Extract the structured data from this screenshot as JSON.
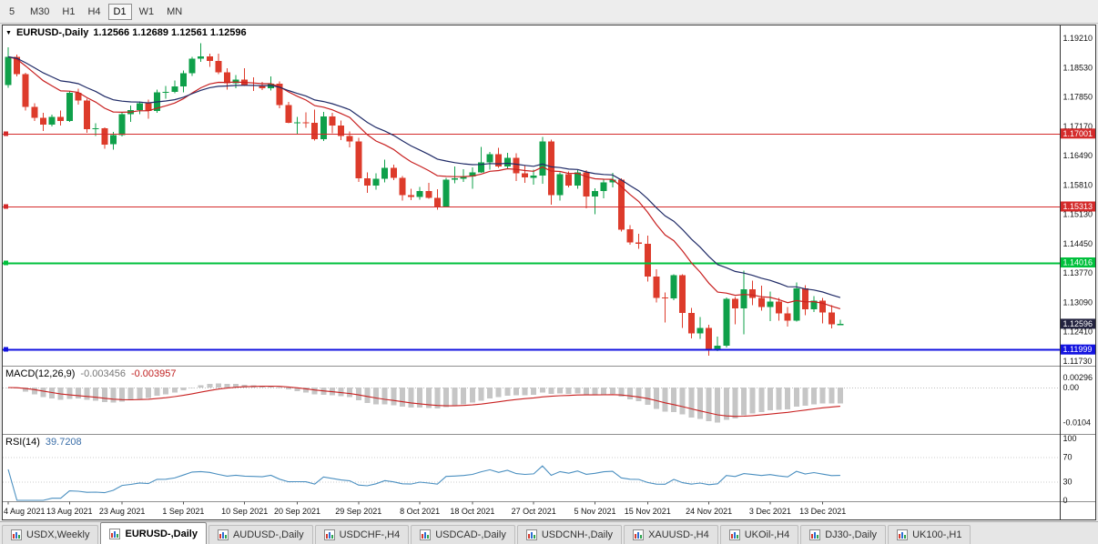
{
  "toolbar": {
    "timeframes": [
      "5",
      "M30",
      "H1",
      "H4",
      "D1",
      "W1",
      "MN"
    ],
    "active": "D1"
  },
  "chart": {
    "dropdown_glyph": "▼",
    "title": "EURUSD-,Daily",
    "ohlc": "1.12566 1.12689 1.12561 1.12596"
  },
  "panes": {
    "macd": {
      "name": "MACD(12,26,9)",
      "value_main": "-0.003456",
      "value_signal": "-0.003957"
    },
    "rsi": {
      "name": "RSI(14)",
      "value": "39.7208"
    }
  },
  "chart_data": {
    "type": "candlestick",
    "symbol": "EURUSD-",
    "timeframe": "Daily",
    "current_bar": {
      "open": 1.12566,
      "high": 1.12689,
      "low": 1.12561,
      "close": 1.12596
    },
    "up_color": "#0fa04a",
    "down_color": "#dd3b2b",
    "y_axis": {
      "ticks": [
        "1.19210",
        "1.18530",
        "1.17850",
        "1.17170",
        "1.16490",
        "1.15810",
        "1.15130",
        "1.14450",
        "1.13770",
        "1.13090",
        "1.12410",
        "1.11730"
      ]
    },
    "x_axis": {
      "tick_labels": [
        {
          "label": "4 Aug 2021",
          "index": 0
        },
        {
          "label": "13 Aug 2021",
          "index": 7
        },
        {
          "label": "23 Aug 2021",
          "index": 13
        },
        {
          "label": "1 Sep 2021",
          "index": 20
        },
        {
          "label": "10 Sep 2021",
          "index": 27
        },
        {
          "label": "20 Sep 2021",
          "index": 33
        },
        {
          "label": "29 Sep 2021",
          "index": 40
        },
        {
          "label": "8 Oct 2021",
          "index": 47
        },
        {
          "label": "18 Oct 2021",
          "index": 53
        },
        {
          "label": "27 Oct 2021",
          "index": 60
        },
        {
          "label": "5 Nov 2021",
          "index": 67
        },
        {
          "label": "15 Nov 2021",
          "index": 73
        },
        {
          "label": "24 Nov 2021",
          "index": 80
        },
        {
          "label": "3 Dec 2021",
          "index": 87
        },
        {
          "label": "13 Dec 2021",
          "index": 93
        }
      ]
    },
    "candles": [
      [
        1.1812,
        1.19,
        1.1806,
        1.1878
      ],
      [
        1.1878,
        1.1883,
        1.1833,
        1.1838
      ],
      [
        1.1838,
        1.1841,
        1.1754,
        1.1762
      ],
      [
        1.1762,
        1.177,
        1.1729,
        1.1737
      ],
      [
        1.1737,
        1.1748,
        1.1706,
        1.1721
      ],
      [
        1.1721,
        1.1744,
        1.1717,
        1.1739
      ],
      [
        1.1739,
        1.1753,
        1.1719,
        1.1729
      ],
      [
        1.1729,
        1.1799,
        1.1727,
        1.1795
      ],
      [
        1.1795,
        1.1804,
        1.1767,
        1.1777
      ],
      [
        1.1777,
        1.1781,
        1.1702,
        1.171
      ],
      [
        1.171,
        1.1724,
        1.1694,
        1.1712
      ],
      [
        1.1712,
        1.1715,
        1.1665,
        1.1675
      ],
      [
        1.1675,
        1.1704,
        1.1663,
        1.1697
      ],
      [
        1.1697,
        1.175,
        1.1693,
        1.1745
      ],
      [
        1.1745,
        1.1765,
        1.1727,
        1.1755
      ],
      [
        1.1755,
        1.1775,
        1.1745,
        1.177
      ],
      [
        1.177,
        1.1779,
        1.1735,
        1.1752
      ],
      [
        1.1752,
        1.1802,
        1.1748,
        1.1796
      ],
      [
        1.1796,
        1.181,
        1.1781,
        1.1797
      ],
      [
        1.1797,
        1.1823,
        1.1793,
        1.1809
      ],
      [
        1.1809,
        1.1846,
        1.1796,
        1.184
      ],
      [
        1.184,
        1.1878,
        1.1834,
        1.1874
      ],
      [
        1.1874,
        1.1909,
        1.1866,
        1.1879
      ],
      [
        1.1879,
        1.1885,
        1.1855,
        1.1868
      ],
      [
        1.1868,
        1.1885,
        1.1838,
        1.1842
      ],
      [
        1.1842,
        1.1851,
        1.1802,
        1.1817
      ],
      [
        1.1817,
        1.1836,
        1.1805,
        1.1825
      ],
      [
        1.1825,
        1.1851,
        1.181,
        1.1813
      ],
      [
        1.1813,
        1.183,
        1.1799,
        1.181
      ],
      [
        1.181,
        1.182,
        1.1801,
        1.1805
      ],
      [
        1.1805,
        1.1832,
        1.18,
        1.1816
      ],
      [
        1.1816,
        1.1821,
        1.1759,
        1.1766
      ],
      [
        1.1766,
        1.1773,
        1.1724,
        1.1725
      ],
      [
        1.1725,
        1.1739,
        1.17,
        1.1726
      ],
      [
        1.1726,
        1.1749,
        1.1713,
        1.1725
      ],
      [
        1.1725,
        1.1756,
        1.1684,
        1.1687
      ],
      [
        1.1687,
        1.175,
        1.1683,
        1.174
      ],
      [
        1.174,
        1.1748,
        1.1701,
        1.1719
      ],
      [
        1.1719,
        1.173,
        1.1685,
        1.1695
      ],
      [
        1.1695,
        1.1705,
        1.1668,
        1.1682
      ],
      [
        1.1682,
        1.169,
        1.1588,
        1.1596
      ],
      [
        1.1596,
        1.161,
        1.1563,
        1.158
      ],
      [
        1.158,
        1.1608,
        1.157,
        1.1595
      ],
      [
        1.1595,
        1.164,
        1.1587,
        1.1621
      ],
      [
        1.1621,
        1.1628,
        1.1592,
        1.1598
      ],
      [
        1.1598,
        1.1602,
        1.1545,
        1.1558
      ],
      [
        1.1558,
        1.1572,
        1.1546,
        1.1553
      ],
      [
        1.1553,
        1.1576,
        1.1547,
        1.1567
      ],
      [
        1.1567,
        1.1586,
        1.1549,
        1.1551
      ],
      [
        1.1551,
        1.1571,
        1.1524,
        1.153
      ],
      [
        1.153,
        1.1598,
        1.1529,
        1.1593
      ],
      [
        1.1593,
        1.1624,
        1.1585,
        1.1596
      ],
      [
        1.1596,
        1.1618,
        1.1588,
        1.1601
      ],
      [
        1.1601,
        1.1622,
        1.1572,
        1.161
      ],
      [
        1.161,
        1.1669,
        1.1609,
        1.1633
      ],
      [
        1.1633,
        1.1658,
        1.1617,
        1.1652
      ],
      [
        1.1652,
        1.1667,
        1.1621,
        1.1624
      ],
      [
        1.1624,
        1.1656,
        1.162,
        1.1644
      ],
      [
        1.1644,
        1.1654,
        1.159,
        1.1608
      ],
      [
        1.1608,
        1.1626,
        1.1586,
        1.1598
      ],
      [
        1.1598,
        1.1617,
        1.1582,
        1.1603
      ],
      [
        1.1603,
        1.1692,
        1.1584,
        1.1682
      ],
      [
        1.1682,
        1.1686,
        1.1535,
        1.1558
      ],
      [
        1.1558,
        1.161,
        1.1545,
        1.1606
      ],
      [
        1.1606,
        1.1612,
        1.1575,
        1.158
      ],
      [
        1.158,
        1.1616,
        1.1572,
        1.161
      ],
      [
        1.161,
        1.1616,
        1.1527,
        1.1554
      ],
      [
        1.1554,
        1.1573,
        1.1513,
        1.1567
      ],
      [
        1.1567,
        1.1593,
        1.155,
        1.1587
      ],
      [
        1.1587,
        1.1609,
        1.1575,
        1.1593
      ],
      [
        1.1593,
        1.1596,
        1.1473,
        1.1478
      ],
      [
        1.1478,
        1.1488,
        1.1443,
        1.1448
      ],
      [
        1.1448,
        1.1468,
        1.1433,
        1.1445
      ],
      [
        1.1445,
        1.1464,
        1.1357,
        1.1369
      ],
      [
        1.1369,
        1.1386,
        1.1309,
        1.132
      ],
      [
        1.132,
        1.1332,
        1.1263,
        1.1319
      ],
      [
        1.1319,
        1.1374,
        1.1314,
        1.1372
      ],
      [
        1.1372,
        1.1374,
        1.125,
        1.1285
      ],
      [
        1.1285,
        1.1296,
        1.1226,
        1.1237
      ],
      [
        1.1237,
        1.1275,
        1.1225,
        1.125
      ],
      [
        1.125,
        1.1257,
        1.1186,
        1.1199
      ],
      [
        1.1199,
        1.123,
        1.1196,
        1.1209
      ],
      [
        1.1209,
        1.132,
        1.1205,
        1.1317
      ],
      [
        1.1317,
        1.1322,
        1.1258,
        1.1295
      ],
      [
        1.1295,
        1.1383,
        1.1235,
        1.1339
      ],
      [
        1.1339,
        1.136,
        1.1303,
        1.1319
      ],
      [
        1.1319,
        1.1348,
        1.129,
        1.1298
      ],
      [
        1.1298,
        1.1334,
        1.1266,
        1.1311
      ],
      [
        1.1311,
        1.1319,
        1.1267,
        1.1284
      ],
      [
        1.1284,
        1.1298,
        1.1253,
        1.1267
      ],
      [
        1.1267,
        1.1355,
        1.1265,
        1.1342
      ],
      [
        1.1342,
        1.1349,
        1.1279,
        1.1293
      ],
      [
        1.1293,
        1.1324,
        1.1287,
        1.1313
      ],
      [
        1.1313,
        1.1319,
        1.126,
        1.1286
      ],
      [
        1.1286,
        1.1303,
        1.1249,
        1.1258
      ],
      [
        1.12566,
        1.12689,
        1.12561,
        1.12596
      ]
    ],
    "moving_averages": [
      {
        "period": 13,
        "color": "#c82020"
      },
      {
        "period": 21,
        "color": "#1f2a66"
      }
    ],
    "horizontal_lines": [
      {
        "value": 1.17001,
        "label": "1.17001",
        "color": "#d42a2a",
        "width": 1.3
      },
      {
        "value": 1.15313,
        "label": "1.15313",
        "color": "#d42a2a",
        "width": 1.3
      },
      {
        "value": 1.14016,
        "label": "1.14016",
        "color": "#00c03c",
        "width": 1.6
      },
      {
        "value": 1.11999,
        "label": "1.11999",
        "color": "#1212e0",
        "width": 2
      }
    ],
    "current_price_tag": {
      "label": "1.12596",
      "value": 1.12596,
      "color": "#23233f"
    },
    "indicators": [
      {
        "type": "MACD",
        "params": [
          12,
          26,
          9
        ],
        "values": [
          -0.003456,
          -0.003957
        ],
        "histogram_color": "#c6c6c6",
        "signal_color": "#c82020",
        "axis_labels": [
          {
            "text": "0.00296",
            "value": 0.00296
          },
          {
            "text": "0.00",
            "value": 0
          },
          {
            "text": "-0.0104",
            "value": -0.0104
          }
        ]
      },
      {
        "type": "RSI",
        "params": [
          14
        ],
        "value": 39.7208,
        "line_color": "#4a8fc0",
        "levels": [
          70,
          30
        ],
        "axis_labels": [
          {
            "text": "100",
            "value": 100
          },
          {
            "text": "70",
            "value": 70
          },
          {
            "text": "30",
            "value": 30
          },
          {
            "text": "0",
            "value": 0
          }
        ]
      }
    ]
  },
  "tabbar": {
    "tabs": [
      {
        "label": "USDX,Weekly"
      },
      {
        "label": "EURUSD-,Daily",
        "active": true
      },
      {
        "label": "AUDUSD-,Daily"
      },
      {
        "label": "USDCHF-,H4"
      },
      {
        "label": "USDCAD-,Daily"
      },
      {
        "label": "USDCNH-,Daily"
      },
      {
        "label": "XAUUSD-,H4"
      },
      {
        "label": "UKOil-,H4"
      },
      {
        "label": "DJ30-,Daily"
      },
      {
        "label": "UK100-,H1"
      }
    ]
  }
}
